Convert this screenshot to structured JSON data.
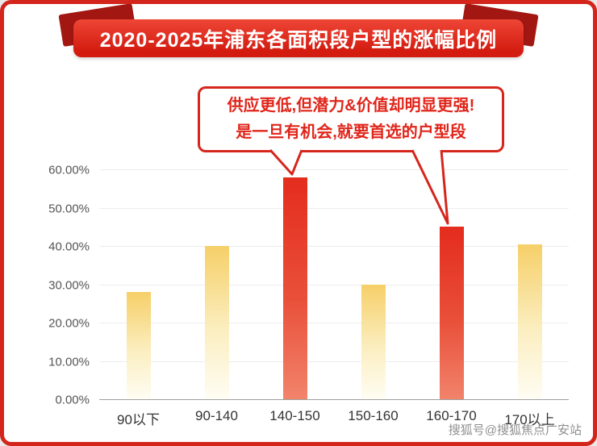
{
  "banner": {
    "title": "2020-2025年浦东各面积段户型的涨幅比例"
  },
  "callout": {
    "line1": "供应更低,但潜力&价值却明显更强!",
    "line2": "是一旦有机会,就要首选的户型段"
  },
  "chart_data": {
    "type": "bar",
    "title": "2020-2025年浦东各面积段户型的涨幅比例",
    "categories": [
      "90以下",
      "90-140",
      "140-150",
      "150-160",
      "160-170",
      "170以上"
    ],
    "values": [
      28,
      40,
      58,
      30,
      45,
      40.5
    ],
    "highlight_indexes": [
      2,
      4
    ],
    "highlight_meaning": "callout points to these bars",
    "xlabel": "",
    "ylabel": "",
    "ylim": [
      0,
      60
    ],
    "y_ticks": [
      "60.00%",
      "50.00%",
      "40.00%",
      "30.00%",
      "20.00%",
      "10.00%",
      "0.00%"
    ],
    "grid": "horizontal",
    "legend": "none",
    "colors": {
      "bar_normal_top": "#f6cf68",
      "bar_normal_bottom": "#fffdf4",
      "bar_highlight_top": "#e42c1d",
      "bar_highlight_bottom": "#f2836b",
      "accent_red": "#d3251b"
    }
  },
  "watermark": {
    "text": "搜狐号@搜狐焦点广安站"
  }
}
